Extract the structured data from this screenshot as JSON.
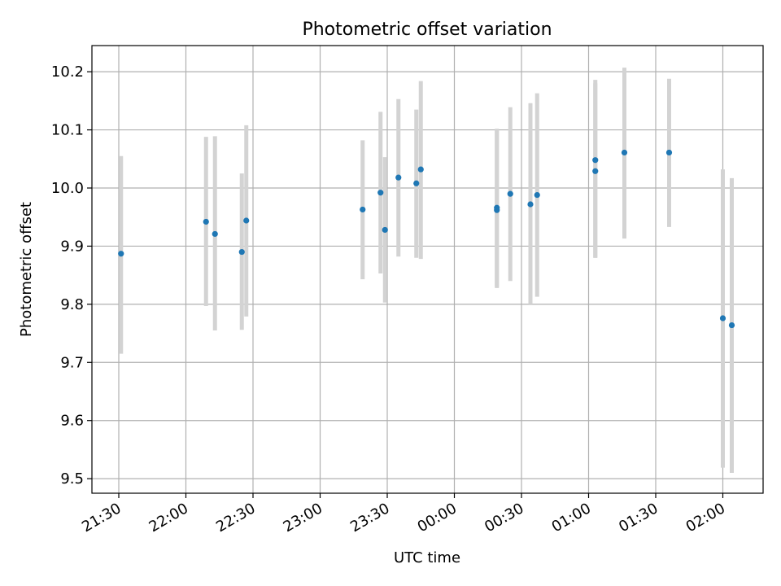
{
  "chart_data": {
    "type": "scatter",
    "title": "Photometric offset variation",
    "xlabel": "UTC time",
    "ylabel": "Photometric offset",
    "x_ticks": [
      "21:30",
      "22:00",
      "22:30",
      "23:00",
      "23:30",
      "00:00",
      "00:30",
      "01:00",
      "01:30",
      "02:00"
    ],
    "y_ticks": [
      "9.5",
      "9.6",
      "9.7",
      "9.8",
      "9.9",
      "10.0",
      "10.1",
      "10.2"
    ],
    "xlim": [
      "21:18",
      "02:18"
    ],
    "ylim": [
      9.475,
      10.245
    ],
    "grid": true,
    "errorbar_color": "#d3d3d3",
    "marker_color": "#1f77b4",
    "points": [
      {
        "x": "21:31",
        "y": 9.887,
        "ylow": 9.715,
        "yhigh": 10.055
      },
      {
        "x": "22:09",
        "y": 9.942,
        "ylow": 9.797,
        "yhigh": 10.088
      },
      {
        "x": "22:13",
        "y": 9.921,
        "ylow": 9.755,
        "yhigh": 10.089
      },
      {
        "x": "22:25",
        "y": 9.89,
        "ylow": 9.756,
        "yhigh": 10.025
      },
      {
        "x": "22:27",
        "y": 9.944,
        "ylow": 9.779,
        "yhigh": 10.108
      },
      {
        "x": "23:19",
        "y": 9.963,
        "ylow": 9.843,
        "yhigh": 10.082
      },
      {
        "x": "23:27",
        "y": 9.992,
        "ylow": 9.853,
        "yhigh": 10.131
      },
      {
        "x": "23:29",
        "y": 9.928,
        "ylow": 9.803,
        "yhigh": 10.053
      },
      {
        "x": "23:35",
        "y": 10.018,
        "ylow": 9.882,
        "yhigh": 10.153
      },
      {
        "x": "23:43",
        "y": 10.008,
        "ylow": 9.88,
        "yhigh": 10.135
      },
      {
        "x": "23:45",
        "y": 10.032,
        "ylow": 9.878,
        "yhigh": 10.184
      },
      {
        "x": "00:19",
        "y": 9.966,
        "ylow": 9.828,
        "yhigh": 10.102
      },
      {
        "x": "00:19",
        "y": 9.962,
        "ylow": 9.83,
        "yhigh": 10.1
      },
      {
        "x": "00:25",
        "y": 9.99,
        "ylow": 9.84,
        "yhigh": 10.139
      },
      {
        "x": "00:34",
        "y": 9.972,
        "ylow": 9.8,
        "yhigh": 10.146
      },
      {
        "x": "00:37",
        "y": 9.988,
        "ylow": 9.813,
        "yhigh": 10.163
      },
      {
        "x": "01:03",
        "y": 10.048,
        "ylow": 9.88,
        "yhigh": 10.186
      },
      {
        "x": "01:03",
        "y": 10.029,
        "ylow": 9.88,
        "yhigh": 10.18
      },
      {
        "x": "01:16",
        "y": 10.061,
        "ylow": 9.913,
        "yhigh": 10.207
      },
      {
        "x": "01:36",
        "y": 10.061,
        "ylow": 9.933,
        "yhigh": 10.188
      },
      {
        "x": "02:00",
        "y": 9.776,
        "ylow": 9.519,
        "yhigh": 10.032
      },
      {
        "x": "02:04",
        "y": 9.764,
        "ylow": 9.51,
        "yhigh": 10.017
      }
    ]
  }
}
